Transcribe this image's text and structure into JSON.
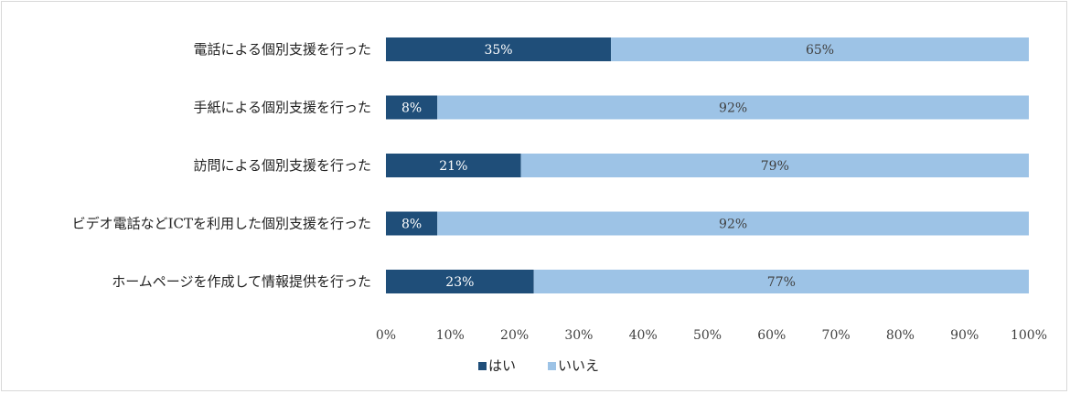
{
  "chart_data": {
    "type": "bar",
    "orientation": "horizontal",
    "stacked": true,
    "title": "",
    "xlabel": "",
    "ylabel": "",
    "categories": [
      "電話による個別支援を行った",
      "手紙による個別支援を行った",
      "訪問による個別支援を行った",
      "ビデオ電話などICTを利用した個別支援を行った",
      "ホームページを作成して情報提供を行った"
    ],
    "series": [
      {
        "name": "はい",
        "color": "#1f4e79",
        "label_color": "#ffffff",
        "values": [
          35,
          8,
          21,
          8,
          23
        ],
        "labels": [
          "35%",
          "8%",
          "21%",
          "8%",
          "23%"
        ]
      },
      {
        "name": "いいえ",
        "color": "#9dc3e6",
        "label_color": "#404040",
        "values": [
          65,
          92,
          79,
          92,
          77
        ],
        "labels": [
          "65%",
          "92%",
          "79%",
          "92%",
          "77%"
        ]
      }
    ],
    "xlim": [
      0,
      100
    ],
    "xticks": [
      "0%",
      "10%",
      "20%",
      "30%",
      "40%",
      "50%",
      "60%",
      "70%",
      "80%",
      "90%",
      "100%"
    ],
    "grid": false,
    "legend_position": "bottom-left"
  }
}
